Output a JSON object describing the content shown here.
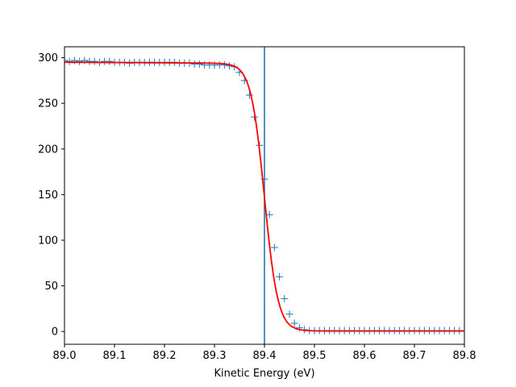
{
  "chart_data": {
    "type": "line",
    "xlabel": "Kinetic Energy (eV)",
    "ylabel": "",
    "title": "",
    "xlim": [
      89.0,
      89.8
    ],
    "ylim": [
      -14,
      312
    ],
    "x_ticks": [
      89.0,
      89.1,
      89.2,
      89.3,
      89.4,
      89.5,
      89.6,
      89.7,
      89.8
    ],
    "x_tick_labels": [
      "89.0",
      "89.1",
      "89.2",
      "89.3",
      "89.4",
      "89.5",
      "89.6",
      "89.7",
      "89.8"
    ],
    "y_ticks": [
      0,
      50,
      100,
      150,
      200,
      250,
      300
    ],
    "y_tick_labels": [
      "0",
      "50",
      "100",
      "150",
      "200",
      "250",
      "300"
    ],
    "grid": false,
    "vertical_line_x": 89.4,
    "fit_parameters": {
      "mu": 89.4,
      "width": 0.0135,
      "low_level": 0.5,
      "high_level": 295,
      "slope_per_ev": -3
    },
    "series": [
      {
        "kind": "data",
        "marker": "+",
        "color": "#1f77b4",
        "x": [
          89.0,
          89.01,
          89.02,
          89.03,
          89.04,
          89.05,
          89.06,
          89.07,
          89.08,
          89.09,
          89.1,
          89.11,
          89.12,
          89.13,
          89.14,
          89.15,
          89.16,
          89.17,
          89.18,
          89.19,
          89.2,
          89.21,
          89.22,
          89.23,
          89.24,
          89.25,
          89.26,
          89.27,
          89.28,
          89.29,
          89.3,
          89.31,
          89.32,
          89.33,
          89.34,
          89.35,
          89.36,
          89.37,
          89.38,
          89.39,
          89.4,
          89.41,
          89.42,
          89.43,
          89.44,
          89.45,
          89.46,
          89.47,
          89.48,
          89.49,
          89.5,
          89.51,
          89.52,
          89.53,
          89.54,
          89.55,
          89.56,
          89.57,
          89.58,
          89.59,
          89.6,
          89.61,
          89.62,
          89.63,
          89.64,
          89.65,
          89.66,
          89.67,
          89.68,
          89.69,
          89.7,
          89.71,
          89.72,
          89.73,
          89.74,
          89.75,
          89.76,
          89.77,
          89.78,
          89.79,
          89.8
        ],
        "y": [
          297,
          296,
          297,
          296,
          297,
          296,
          296,
          295,
          296,
          296,
          295,
          295,
          295,
          294,
          295,
          295,
          295,
          295,
          295,
          295,
          295,
          295,
          295,
          294,
          294,
          294,
          293,
          293,
          292,
          292,
          292,
          292,
          292,
          291,
          290,
          284,
          275,
          259,
          235,
          204,
          167,
          128,
          92,
          60,
          36,
          19,
          9,
          4,
          2,
          1,
          1,
          1,
          1,
          1,
          1,
          1,
          1,
          1,
          1,
          1,
          1,
          1,
          1,
          1,
          1,
          1,
          1,
          1,
          1,
          1,
          1,
          1,
          1,
          1,
          1,
          1,
          1,
          1,
          1,
          1,
          1
        ]
      },
      {
        "kind": "fit",
        "color": "#ff0000",
        "description": "fitted curve"
      }
    ]
  }
}
